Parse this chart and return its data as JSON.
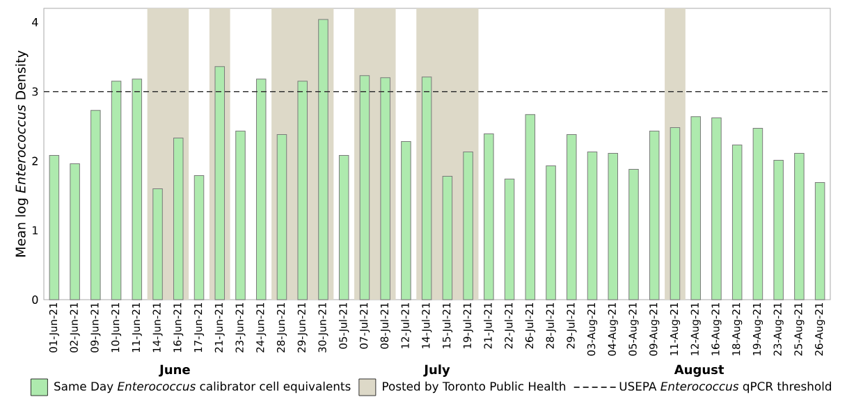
{
  "chart_data": {
    "type": "bar",
    "ylabel": "Mean log *Enterococcus* Density",
    "categories": [
      "01-Jun-21",
      "02-Jun-21",
      "09-Jun-21",
      "10-Jun-21",
      "11-Jun-21",
      "14-Jun-21",
      "16-Jun-21",
      "17-Jun-21",
      "21-Jun-21",
      "23-Jun-21",
      "24-Jun-21",
      "28-Jun-21",
      "29-Jun-21",
      "30-Jun-21",
      "05-Jul-21",
      "07-Jul-21",
      "08-Jul-21",
      "12-Jul-21",
      "14-Jul-21",
      "15-Jul-21",
      "19-Jul-21",
      "21-Jul-21",
      "22-Jul-21",
      "26-Jul-21",
      "28-Jul-21",
      "29-Jul-21",
      "03-Aug-21",
      "04-Aug-21",
      "05-Aug-21",
      "09-Aug-21",
      "11-Aug-21",
      "12-Aug-21",
      "16-Aug-21",
      "18-Aug-21",
      "19-Aug-21",
      "23-Aug-21",
      "25-Aug-21",
      "26-Aug-21"
    ],
    "series": [
      {
        "name": "Same Day *Enterococcus* calibrator cell equivalents",
        "color": "#aeeaae",
        "values": [
          2.08,
          1.96,
          2.73,
          3.15,
          3.18,
          1.6,
          2.33,
          1.79,
          3.36,
          2.43,
          3.18,
          2.38,
          3.15,
          4.04,
          2.08,
          3.23,
          3.2,
          2.28,
          3.21,
          1.78,
          2.13,
          2.39,
          1.74,
          2.67,
          1.93,
          2.38,
          2.13,
          2.11,
          1.88,
          2.43,
          2.48,
          2.64,
          2.62,
          2.23,
          2.47,
          2.01,
          2.11,
          1.69
        ]
      }
    ],
    "ylim": [
      0,
      4.2
    ],
    "yticks": [
      0,
      1,
      2,
      3,
      4
    ],
    "bands": [
      {
        "axis": "x",
        "from": "14-Jun-21",
        "to": "16-Jun-21",
        "label": "Posted by Toronto Public Health",
        "color": "#ddd9c8"
      },
      {
        "axis": "x",
        "from": "21-Jun-21",
        "to": "21-Jun-21",
        "color": "#ddd9c8"
      },
      {
        "axis": "x",
        "from": "28-Jun-21",
        "to": "30-Jun-21",
        "color": "#ddd9c8"
      },
      {
        "axis": "x",
        "from": "07-Jul-21",
        "to": "08-Jul-21",
        "color": "#ddd9c8"
      },
      {
        "axis": "x",
        "from": "14-Jul-21",
        "to": "19-Jul-21",
        "color": "#ddd9c8"
      },
      {
        "axis": "x",
        "from": "11-Aug-21",
        "to": "11-Aug-21",
        "color": "#ddd9c8"
      }
    ],
    "ref_lines": [
      {
        "axis": "y",
        "value": 3,
        "label": "USEPA *Enterococcus* qPCR threshold",
        "color": "#333333",
        "line_style": "dashed"
      }
    ],
    "annotations": [
      "June",
      "July",
      "August"
    ],
    "legend": "bottom"
  }
}
